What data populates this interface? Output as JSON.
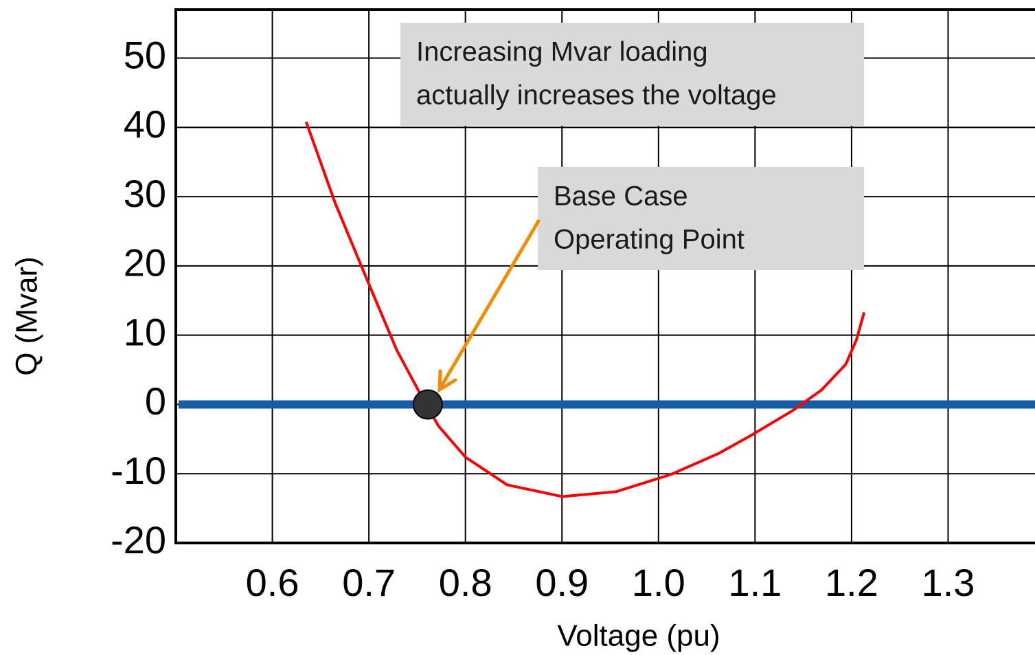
{
  "chart_data": {
    "type": "line",
    "xlabel": "Voltage (pu)",
    "ylabel": "Q (Mvar)",
    "xlim": [
      0.5,
      1.39
    ],
    "ylim": [
      -20,
      57
    ],
    "xticks": [
      0.6,
      0.7,
      0.8,
      0.9,
      {
        "value": 1,
        "label": "1.0"
      },
      1.1,
      1.2,
      1.3
    ],
    "yticks": [
      -20,
      -10,
      0,
      10,
      20,
      30,
      40,
      50
    ],
    "grid": true,
    "series": [
      {
        "color": "#ff0000",
        "x": [
          0.635,
          0.665,
          0.699,
          0.729,
          0.754,
          0.772,
          0.8,
          0.843,
          0.9,
          0.956,
          1.013,
          1.062,
          1.098,
          1.14,
          1.169,
          1.194,
          1.205,
          1.213
        ],
        "values": [
          40.8,
          29.1,
          17.7,
          7.8,
          1.3,
          -3.1,
          -7.6,
          -11.6,
          -13.3,
          -12.6,
          -10.1,
          -7.1,
          -4.3,
          -0.8,
          2.1,
          5.8,
          9.3,
          13.3
        ]
      }
    ],
    "reference_line": {
      "value": 0,
      "color": "#135ea6"
    },
    "points": [
      {
        "x": 0.761,
        "y": 0,
        "color": "#333333"
      }
    ],
    "annotations": [
      {
        "lines": [
          "Increasing Mvar loading",
          "actually increases the voltage"
        ]
      },
      {
        "lines": [
          "Base Case",
          "Operating Point"
        ]
      }
    ]
  }
}
